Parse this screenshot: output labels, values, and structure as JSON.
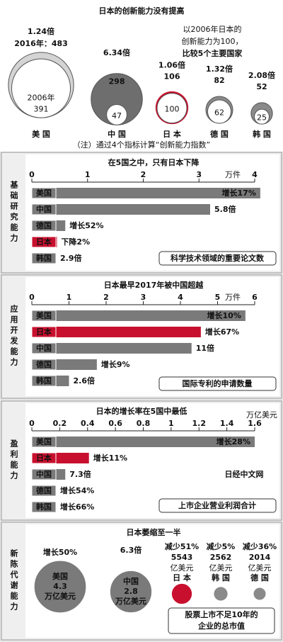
{
  "title": "日本的创新能力没有提高",
  "overview": {
    "note_lines": [
      "以2006年日本的",
      "创新能力为100，",
      "比较5个主要国家"
    ],
    "footnote": "（注）通过4个指标计算“创新能力指数”",
    "countries": [
      {
        "name": "美 国",
        "ratio": "1.24倍",
        "value_2016": 483,
        "label_2016": "2016年：483",
        "year_2006": "2006年",
        "value_2006": 391,
        "color": "#d4d4d4"
      },
      {
        "name": "中 国",
        "ratio": "6.34倍",
        "value_2016": 298,
        "value_2006": 47,
        "color": "#6e6e6e"
      },
      {
        "name": "日 本",
        "ratio": "1.06倍",
        "value_2016": 106,
        "value_2006": 100,
        "color": "#c8102e"
      },
      {
        "name": "德 国",
        "ratio": "1.32倍",
        "value_2016": 82,
        "value_2006": 62,
        "color": "#8a8a8a"
      },
      {
        "name": "韩 国",
        "ratio": "2.08倍",
        "value_2016": 52,
        "value_2006": 25,
        "color": "#8a8a8a"
      }
    ]
  },
  "panels": [
    {
      "label": "基础研究能力",
      "title": "在5国之中，只有日本下降",
      "unit": "万件",
      "xlim": [
        0,
        4
      ],
      "xticks": [
        0,
        1,
        2,
        3,
        4
      ],
      "note": "科学技术领域的重要论文数",
      "bars": [
        {
          "name": "美国",
          "value": 4.1,
          "annotation": "增长17%",
          "color": "#7a7a7a"
        },
        {
          "name": "中国",
          "value": 3.2,
          "annotation": "5.8倍",
          "big": true,
          "color": "#7a7a7a"
        },
        {
          "name": "德国",
          "value": 0.6,
          "annotation": "增长52%",
          "color": "#7a7a7a"
        },
        {
          "name": "日本",
          "value": 0.45,
          "annotation": "下降2%",
          "color": "#c8102e"
        },
        {
          "name": "韩国",
          "value": 0.35,
          "annotation": "2.9倍",
          "big": true,
          "color": "#7a7a7a"
        }
      ]
    },
    {
      "label": "应用开发能力",
      "title": "日本最早2017年被中国超越",
      "unit": "万件",
      "xlim": [
        0,
        6
      ],
      "xticks": [
        0,
        1,
        2,
        3,
        4,
        5,
        6
      ],
      "note": "国际专利的申请数量",
      "bars": [
        {
          "name": "美国",
          "value": 5.75,
          "annotation": "增长10%",
          "color": "#7a7a7a"
        },
        {
          "name": "日本",
          "value": 4.55,
          "annotation": "增长67%",
          "color": "#c8102e"
        },
        {
          "name": "中国",
          "value": 4.3,
          "annotation": "11倍",
          "big": true,
          "color": "#7a7a7a"
        },
        {
          "name": "德国",
          "value": 1.75,
          "annotation": "增长9%",
          "color": "#7a7a7a"
        },
        {
          "name": "韩国",
          "value": 1.0,
          "annotation": "2.6倍",
          "big": true,
          "color": "#7a7a7a"
        }
      ]
    },
    {
      "label": "盈利能力",
      "title": "日本的增长率在5国中最低",
      "unit": "万亿美元",
      "unit_above": true,
      "xlim": [
        0,
        1.6
      ],
      "xticks": [
        0,
        0.2,
        0.4,
        0.6,
        0.8,
        1,
        1.2,
        1.4,
        1.6
      ],
      "note": "上市企业营业利润合计",
      "watermark": "日经中文网",
      "bars": [
        {
          "name": "美国",
          "value": 1.6,
          "annotation": "增长28%",
          "color": "#7a7a7a"
        },
        {
          "name": "日本",
          "value": 0.41,
          "annotation": "增长11%",
          "color": "#c8102e"
        },
        {
          "name": "中国",
          "value": 0.24,
          "annotation": "7.3倍",
          "big": true,
          "color": "#7a7a7a"
        },
        {
          "name": "德国",
          "value": 0.15,
          "annotation": "增长54%",
          "color": "#7a7a7a"
        },
        {
          "name": "韩国",
          "value": 0.13,
          "annotation": "增长66%",
          "color": "#7a7a7a"
        }
      ]
    }
  ],
  "metabolism": {
    "label": "新陈代谢能力",
    "title": "日本萎缩至一半",
    "note_lines": [
      "股票上市不足10年的",
      "企业的总市值"
    ],
    "large": [
      {
        "name": "美国",
        "change": "增长50%",
        "value": 4.3,
        "unit": "万亿美元",
        "color": "#7a7a7a"
      },
      {
        "name": "中国",
        "change": "6.3倍",
        "value": 2.8,
        "unit": "万亿美元",
        "color": "#7a7a7a"
      }
    ],
    "small": [
      {
        "name": "日 本",
        "change": "减少51%",
        "value": 5543,
        "unit": "亿美元",
        "color": "#c8102e"
      },
      {
        "name": "韩 国",
        "change": "减少5%",
        "value": 2562,
        "unit": "亿美元",
        "color": "#8a8a8a"
      },
      {
        "name": "德 国",
        "change": "减少36%",
        "value": 2014,
        "unit": "亿美元",
        "color": "#8a8a8a"
      }
    ]
  }
}
